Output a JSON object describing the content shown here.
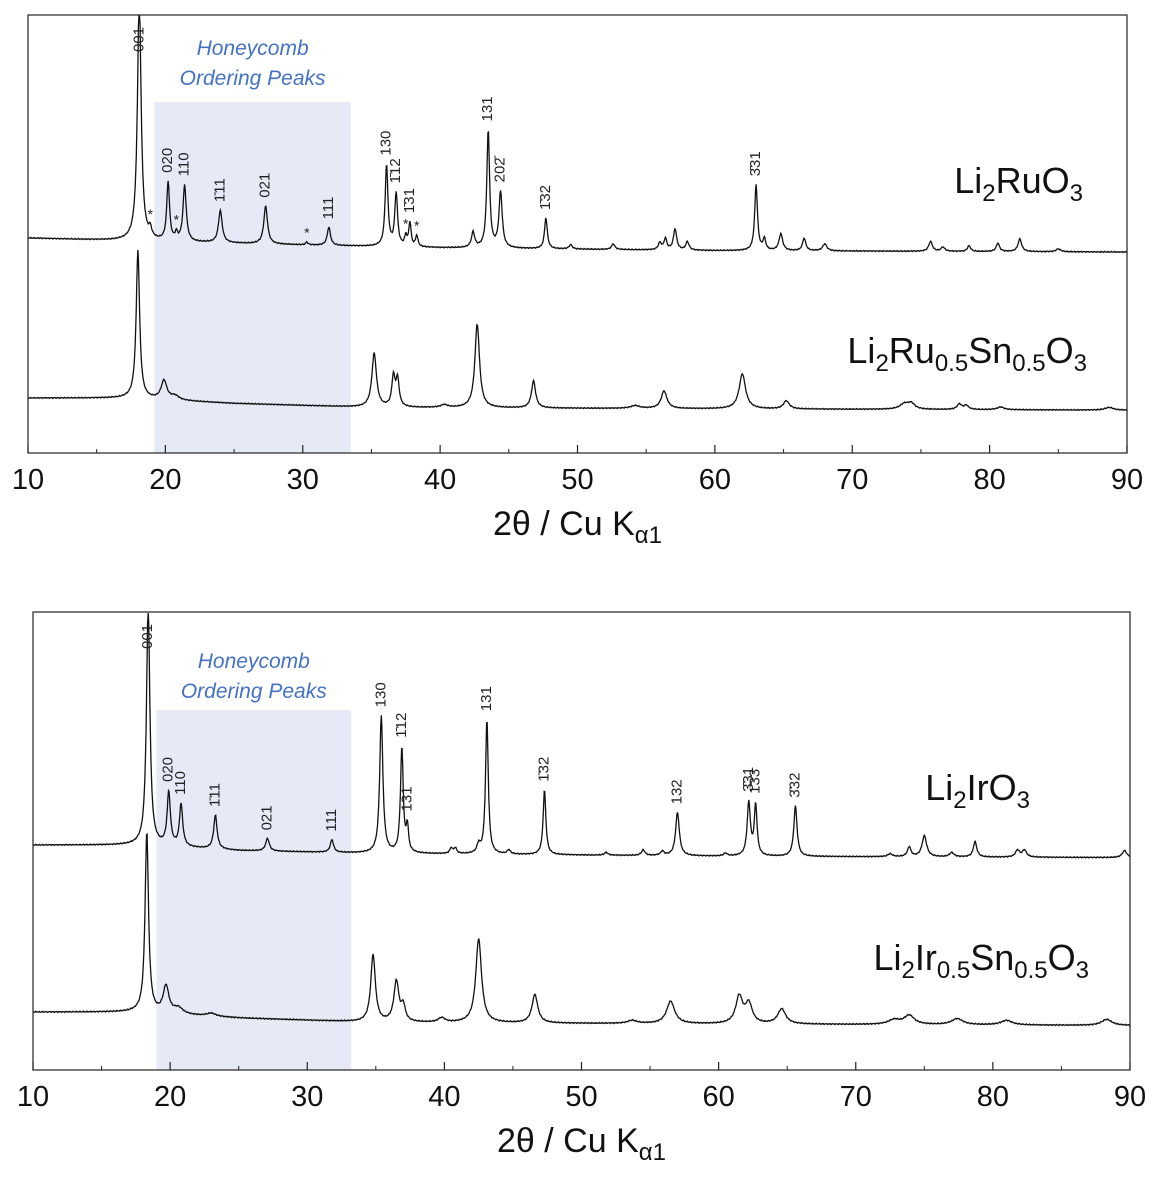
{
  "chart_data": [
    {
      "type": "line",
      "xlabel": {
        "main": "2θ / Cu K",
        "sub": "α1"
      },
      "xlim": [
        10,
        90
      ],
      "xticks": [
        "10",
        "20",
        "30",
        "40",
        "50",
        "60",
        "70",
        "80",
        "90"
      ],
      "ylabel": "",
      "shaded_region": {
        "label_line1": "Honeycomb",
        "label_line2": "Ordering Peaks",
        "x": [
          19.2,
          33.5
        ],
        "color": "#e6eaf6"
      },
      "series": [
        {
          "name_main": "Li",
          "name_parts": [
            [
              "Li",
              ""
            ],
            [
              "2",
              "sub"
            ],
            [
              "RuO",
              ""
            ],
            [
              "3",
              "sub"
            ]
          ],
          "baseline": [
            [
              10,
              0.12
            ],
            [
              17.5,
              0.1
            ],
            [
              30,
              0.07
            ],
            [
              40,
              0.05
            ],
            [
              60,
              0.03
            ],
            [
              90,
              0.02
            ]
          ],
          "peaks": [
            [
              18.1,
              1.75,
              0.16
            ],
            [
              18.9,
              0.06,
              0.12
            ],
            [
              20.2,
              0.42,
              0.12
            ],
            [
              20.8,
              0.05,
              0.1
            ],
            [
              21.4,
              0.4,
              0.14
            ],
            [
              24.0,
              0.23,
              0.16
            ],
            [
              27.3,
              0.27,
              0.16
            ],
            [
              30.3,
              0.02,
              0.1
            ],
            [
              31.9,
              0.13,
              0.14
            ],
            [
              36.1,
              0.58,
              0.12
            ],
            [
              36.8,
              0.38,
              0.12
            ],
            [
              37.5,
              0.07,
              0.1
            ],
            [
              37.8,
              0.17,
              0.1
            ],
            [
              38.3,
              0.08,
              0.1
            ],
            [
              42.4,
              0.11,
              0.14
            ],
            [
              43.5,
              0.84,
              0.12
            ],
            [
              44.4,
              0.4,
              0.14
            ],
            [
              47.7,
              0.22,
              0.12
            ],
            [
              49.5,
              0.03,
              0.14
            ],
            [
              52.6,
              0.04,
              0.14
            ],
            [
              56.0,
              0.05,
              0.14
            ],
            [
              56.4,
              0.08,
              0.12
            ],
            [
              57.1,
              0.15,
              0.14
            ],
            [
              58.0,
              0.06,
              0.14
            ],
            [
              63.0,
              0.47,
              0.12
            ],
            [
              63.6,
              0.08,
              0.12
            ],
            [
              64.8,
              0.12,
              0.16
            ],
            [
              66.5,
              0.09,
              0.14
            ],
            [
              68.0,
              0.05,
              0.18
            ],
            [
              75.7,
              0.07,
              0.16
            ],
            [
              76.6,
              0.03,
              0.16
            ],
            [
              78.5,
              0.04,
              0.14
            ],
            [
              80.6,
              0.06,
              0.14
            ],
            [
              82.2,
              0.09,
              0.16
            ],
            [
              85.0,
              0.02,
              0.2
            ]
          ],
          "peak_labels": [
            [
              "001",
              18.1
            ],
            [
              "020",
              20.2
            ],
            [
              "110",
              21.4
            ],
            [
              "1̄11",
              24.0
            ],
            [
              "021",
              27.3
            ],
            [
              "111",
              31.9
            ],
            [
              "130",
              36.1
            ],
            [
              "1̄12",
              36.8
            ],
            [
              "1̄31",
              37.8
            ],
            [
              "131",
              43.5
            ],
            [
              "202̄",
              44.4
            ],
            [
              "1̄32",
              47.7
            ],
            [
              "3̄31",
              63.0
            ]
          ],
          "stars": [
            18.9,
            20.8,
            30.3,
            37.5,
            38.3
          ]
        },
        {
          "name_parts": [
            [
              "Li",
              ""
            ],
            [
              "2",
              "sub"
            ],
            [
              "Ru",
              ""
            ],
            [
              "0.5",
              "sub"
            ],
            [
              "Sn",
              ""
            ],
            [
              "0.5",
              "sub"
            ],
            [
              "O",
              ""
            ],
            [
              "3",
              "sub"
            ]
          ],
          "baseline": [
            [
              10,
              0.1
            ],
            [
              17.6,
              0.1
            ],
            [
              19,
              0.09
            ],
            [
              25,
              0.06
            ],
            [
              35,
              0.03
            ],
            [
              60,
              0.02
            ],
            [
              90,
              0.01
            ]
          ],
          "peaks": [
            [
              18.0,
              1.1,
              0.15
            ],
            [
              19.9,
              0.14,
              0.25
            ],
            [
              20.7,
              0.03,
              0.35
            ],
            [
              35.2,
              0.4,
              0.2
            ],
            [
              36.6,
              0.22,
              0.14
            ],
            [
              36.9,
              0.2,
              0.14
            ],
            [
              40.3,
              0.02,
              0.3
            ],
            [
              42.7,
              0.62,
              0.2
            ],
            [
              46.8,
              0.2,
              0.18
            ],
            [
              54.2,
              0.02,
              0.4
            ],
            [
              56.3,
              0.13,
              0.25
            ],
            [
              62.0,
              0.26,
              0.28
            ],
            [
              65.2,
              0.06,
              0.25
            ],
            [
              73.8,
              0.04,
              0.4
            ],
            [
              74.3,
              0.04,
              0.3
            ],
            [
              77.8,
              0.04,
              0.2
            ],
            [
              78.3,
              0.03,
              0.2
            ],
            [
              80.8,
              0.02,
              0.3
            ],
            [
              88.7,
              0.02,
              0.35
            ]
          ],
          "peak_labels": [],
          "stars": []
        }
      ]
    },
    {
      "type": "line",
      "xlabel": {
        "main": "2θ / Cu K",
        "sub": "α1"
      },
      "xlim": [
        10,
        90
      ],
      "xticks": [
        "10",
        "20",
        "30",
        "40",
        "50",
        "60",
        "70",
        "80",
        "90"
      ],
      "ylabel": "",
      "shaded_region": {
        "label_line1": "Honeycomb",
        "label_line2": "Ordering Peaks",
        "x": [
          19.0,
          33.2
        ],
        "color": "#e6eaf6"
      },
      "series": [
        {
          "name_parts": [
            [
              "Li",
              ""
            ],
            [
              "2",
              "sub"
            ],
            [
              "IrO",
              ""
            ],
            [
              "3",
              "sub"
            ]
          ],
          "baseline": [
            [
              10,
              0.1
            ],
            [
              17.8,
              0.1
            ],
            [
              25,
              0.06
            ],
            [
              35,
              0.04
            ],
            [
              60,
              0.02
            ],
            [
              90,
              0.01
            ]
          ],
          "peaks": [
            [
              18.4,
              1.7,
              0.15
            ],
            [
              19.9,
              0.38,
              0.14
            ],
            [
              20.8,
              0.3,
              0.14
            ],
            [
              23.3,
              0.24,
              0.15
            ],
            [
              27.1,
              0.09,
              0.16
            ],
            [
              31.8,
              0.09,
              0.14
            ],
            [
              35.4,
              0.98,
              0.14
            ],
            [
              36.9,
              0.75,
              0.12
            ],
            [
              37.3,
              0.18,
              0.1
            ],
            [
              40.5,
              0.04,
              0.12
            ],
            [
              40.8,
              0.04,
              0.12
            ],
            [
              42.5,
              0.06,
              0.14
            ],
            [
              43.1,
              0.96,
              0.12
            ],
            [
              44.7,
              0.03,
              0.14
            ],
            [
              47.3,
              0.46,
              0.12
            ],
            [
              51.8,
              0.02,
              0.15
            ],
            [
              54.5,
              0.04,
              0.15
            ],
            [
              55.9,
              0.03,
              0.15
            ],
            [
              57.0,
              0.31,
              0.16
            ],
            [
              60.5,
              0.02,
              0.15
            ],
            [
              62.2,
              0.38,
              0.14
            ],
            [
              62.7,
              0.36,
              0.12
            ],
            [
              65.6,
              0.36,
              0.14
            ],
            [
              72.5,
              0.02,
              0.2
            ],
            [
              73.9,
              0.07,
              0.15
            ],
            [
              75.0,
              0.15,
              0.2
            ],
            [
              77.0,
              0.03,
              0.2
            ],
            [
              78.7,
              0.11,
              0.15
            ],
            [
              81.8,
              0.05,
              0.18
            ],
            [
              82.3,
              0.05,
              0.18
            ],
            [
              89.6,
              0.05,
              0.2
            ]
          ],
          "peak_labels": [
            [
              "001",
              18.4
            ],
            [
              "020",
              19.9
            ],
            [
              "110",
              20.8
            ],
            [
              "1̄11",
              23.3
            ],
            [
              "021",
              27.1
            ],
            [
              "111",
              31.8
            ],
            [
              "130",
              35.4
            ],
            [
              "1̄12",
              36.9
            ],
            [
              "131",
              37.3
            ],
            [
              "131",
              43.1
            ],
            [
              "1̄32",
              47.3
            ],
            [
              "132",
              57.0
            ],
            [
              "3̄31",
              62.2
            ],
            [
              "1̄33",
              62.7
            ],
            [
              "3̄32",
              65.6
            ]
          ],
          "stars": []
        },
        {
          "name_parts": [
            [
              "Li",
              ""
            ],
            [
              "2",
              "sub"
            ],
            [
              "Ir",
              ""
            ],
            [
              "0.5",
              "sub"
            ],
            [
              "Sn",
              ""
            ],
            [
              "0.5",
              "sub"
            ],
            [
              "O",
              ""
            ],
            [
              "3",
              "sub"
            ]
          ],
          "baseline": [
            [
              10,
              0.1
            ],
            [
              17.8,
              0.1
            ],
            [
              19,
              0.09
            ],
            [
              25,
              0.06
            ],
            [
              35,
              0.03
            ],
            [
              60,
              0.02
            ],
            [
              90,
              0.01
            ]
          ],
          "peaks": [
            [
              18.3,
              1.2,
              0.15
            ],
            [
              19.7,
              0.18,
              0.25
            ],
            [
              20.6,
              0.04,
              0.4
            ],
            [
              23.0,
              0.02,
              0.4
            ],
            [
              34.8,
              0.45,
              0.2
            ],
            [
              36.5,
              0.27,
              0.22
            ],
            [
              37.0,
              0.1,
              0.18
            ],
            [
              39.8,
              0.03,
              0.3
            ],
            [
              42.5,
              0.56,
              0.25
            ],
            [
              46.6,
              0.19,
              0.25
            ],
            [
              53.7,
              0.02,
              0.4
            ],
            [
              56.5,
              0.15,
              0.35
            ],
            [
              61.5,
              0.18,
              0.3
            ],
            [
              62.2,
              0.13,
              0.3
            ],
            [
              64.6,
              0.1,
              0.35
            ],
            [
              72.8,
              0.03,
              0.5
            ],
            [
              73.9,
              0.06,
              0.45
            ],
            [
              77.4,
              0.04,
              0.5
            ],
            [
              81.0,
              0.03,
              0.5
            ],
            [
              88.3,
              0.04,
              0.45
            ]
          ],
          "peak_labels": [],
          "stars": []
        }
      ]
    }
  ]
}
